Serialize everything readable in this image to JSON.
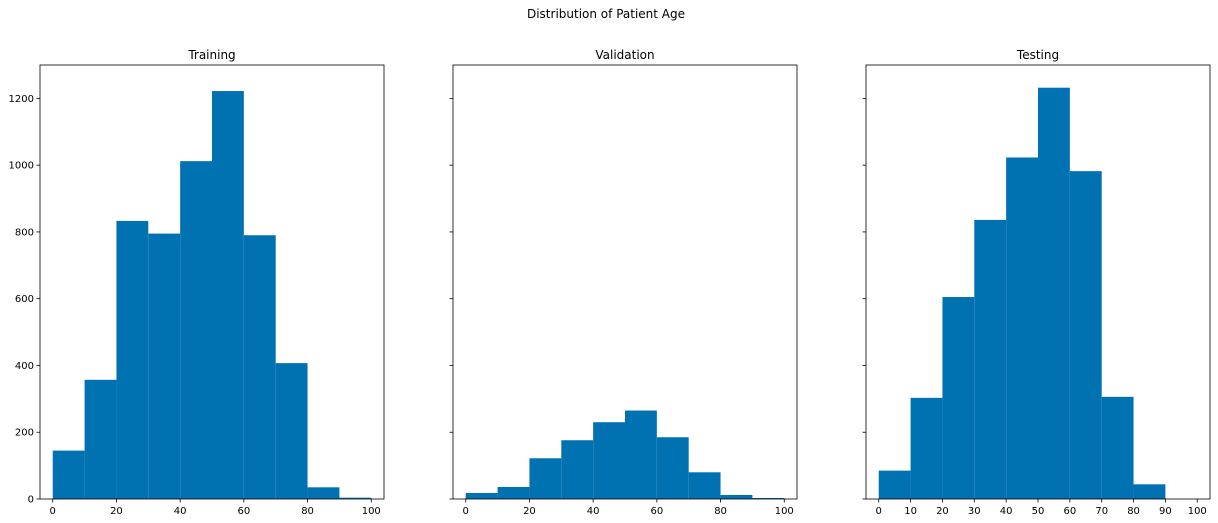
{
  "figure": {
    "title": "Distribution of Patient Age",
    "bar_color": "#0072b2"
  },
  "chart_data": [
    {
      "type": "bar",
      "title": "Training",
      "xlim": [
        -4,
        104
      ],
      "ylim": [
        0,
        1300
      ],
      "xticks": [
        0,
        20,
        40,
        60,
        80,
        100
      ],
      "yticks": [
        0,
        200,
        400,
        600,
        800,
        1000,
        1200
      ],
      "show_yticklabels": true,
      "bins": [
        {
          "start": 0,
          "end": 10,
          "value": 145
        },
        {
          "start": 10,
          "end": 20,
          "value": 357
        },
        {
          "start": 20,
          "end": 30,
          "value": 833
        },
        {
          "start": 30,
          "end": 40,
          "value": 795
        },
        {
          "start": 40,
          "end": 50,
          "value": 1012
        },
        {
          "start": 50,
          "end": 60,
          "value": 1222
        },
        {
          "start": 60,
          "end": 70,
          "value": 790
        },
        {
          "start": 70,
          "end": 80,
          "value": 407
        },
        {
          "start": 80,
          "end": 90,
          "value": 35
        },
        {
          "start": 90,
          "end": 100,
          "value": 4
        }
      ]
    },
    {
      "type": "bar",
      "title": "Validation",
      "xlim": [
        -4,
        104
      ],
      "ylim": [
        0,
        1300
      ],
      "xticks": [
        0,
        20,
        40,
        60,
        80,
        100
      ],
      "yticks": [
        0,
        200,
        400,
        600,
        800,
        1000,
        1200
      ],
      "show_yticklabels": false,
      "bins": [
        {
          "start": 0,
          "end": 10,
          "value": 18
        },
        {
          "start": 10,
          "end": 20,
          "value": 36
        },
        {
          "start": 20,
          "end": 30,
          "value": 122
        },
        {
          "start": 30,
          "end": 40,
          "value": 176
        },
        {
          "start": 40,
          "end": 50,
          "value": 230
        },
        {
          "start": 50,
          "end": 60,
          "value": 265
        },
        {
          "start": 60,
          "end": 70,
          "value": 185
        },
        {
          "start": 70,
          "end": 80,
          "value": 80
        },
        {
          "start": 80,
          "end": 90,
          "value": 12
        },
        {
          "start": 90,
          "end": 100,
          "value": 3
        }
      ]
    },
    {
      "type": "bar",
      "title": "Testing",
      "xlim": [
        -4,
        104
      ],
      "ylim": [
        0,
        1300
      ],
      "xticks": [
        0,
        10,
        20,
        30,
        40,
        50,
        60,
        70,
        80,
        90,
        100
      ],
      "yticks": [
        0,
        200,
        400,
        600,
        800,
        1000,
        1200
      ],
      "show_yticklabels": false,
      "bins": [
        {
          "start": 0,
          "end": 10,
          "value": 85
        },
        {
          "start": 10,
          "end": 20,
          "value": 303
        },
        {
          "start": 20,
          "end": 30,
          "value": 605
        },
        {
          "start": 30,
          "end": 40,
          "value": 836
        },
        {
          "start": 40,
          "end": 50,
          "value": 1023
        },
        {
          "start": 50,
          "end": 60,
          "value": 1232
        },
        {
          "start": 60,
          "end": 70,
          "value": 982
        },
        {
          "start": 70,
          "end": 80,
          "value": 306
        },
        {
          "start": 80,
          "end": 90,
          "value": 44
        },
        {
          "start": 90,
          "end": 100,
          "value": 0
        }
      ]
    }
  ]
}
